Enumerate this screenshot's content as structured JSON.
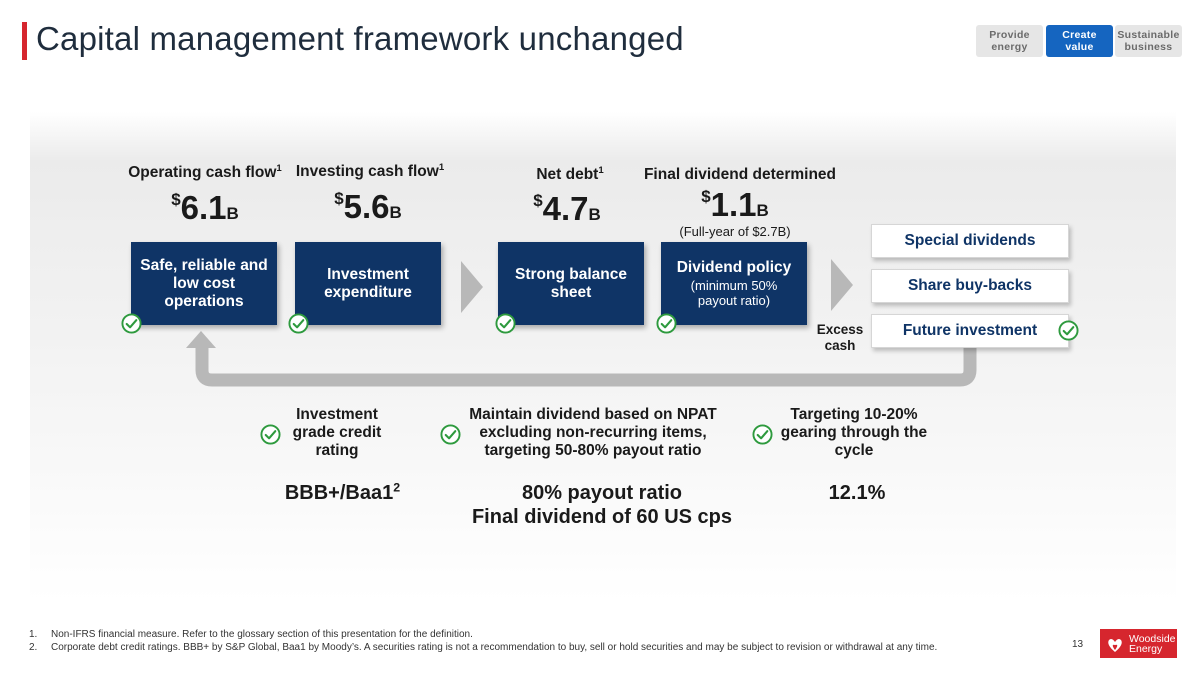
{
  "header": {
    "title": "Capital management framework unchanged"
  },
  "nav": {
    "provide_energy": [
      "Provide",
      "energy"
    ],
    "create_value": [
      "Create",
      "value"
    ],
    "sustainable_business": [
      "Sustainable",
      "business"
    ]
  },
  "flow": {
    "operating": {
      "label": "Operating cash flow",
      "sup": "1",
      "currency": "$",
      "value": "6.1",
      "unit": "B",
      "box": [
        "Safe, reliable and",
        "low cost",
        "operations"
      ]
    },
    "investing": {
      "label": "Investing cash flow",
      "sup": "1",
      "currency": "$",
      "value": "5.6",
      "unit": "B",
      "box": [
        "Investment",
        "expenditure"
      ]
    },
    "net_debt": {
      "label": "Net debt",
      "sup": "1",
      "currency": "$",
      "value": "4.7",
      "unit": "B",
      "box": [
        "Strong balance",
        "sheet"
      ]
    },
    "dividend": {
      "label": "Final dividend determined",
      "currency": "$",
      "value": "1.1",
      "unit": "B",
      "note": "(Full-year of $2.7B)",
      "box_main": "Dividend policy",
      "box_sub": [
        "(minimum 50%",
        "payout ratio)"
      ]
    }
  },
  "options": {
    "special_dividends": "Special dividends",
    "share_buybacks": "Share buy-backs",
    "future_investment": "Future investment",
    "excess_cash": [
      "Excess",
      "cash"
    ]
  },
  "targets": {
    "credit": {
      "text": [
        "Investment",
        "grade credit",
        "rating"
      ],
      "result": "BBB+/Baa1",
      "result_sup": "2"
    },
    "dividend": {
      "text": [
        "Maintain dividend based on NPAT",
        "excluding non-recurring items,",
        "targeting 50-80% payout ratio"
      ],
      "result": [
        "80% payout ratio",
        "Final dividend of 60 US cps"
      ]
    },
    "gearing": {
      "text": [
        "Targeting 10-20%",
        "gearing through the",
        "cycle"
      ],
      "result": "12.1%"
    }
  },
  "footnotes": [
    {
      "num": "1.",
      "text": "Non-IFRS financial measure. Refer to the glossary section of this presentation for the definition."
    },
    {
      "num": "2.",
      "text": "Corporate debt credit ratings. BBB+ by S&P Global, Baa1 by Moody’s. A securities rating is not a recommendation to buy, sell or hold securities and may be subject to revision or withdrawal at any time."
    }
  ],
  "page_number": "13",
  "logo": {
    "line1": "Woodside",
    "line2": "Energy"
  },
  "colors": {
    "accent_red": "#d6262e",
    "navy": "#0f3466",
    "active_tab": "#1565c0",
    "check_green": "#2e9a3e",
    "arrow_grey": "#b8b8b8"
  }
}
